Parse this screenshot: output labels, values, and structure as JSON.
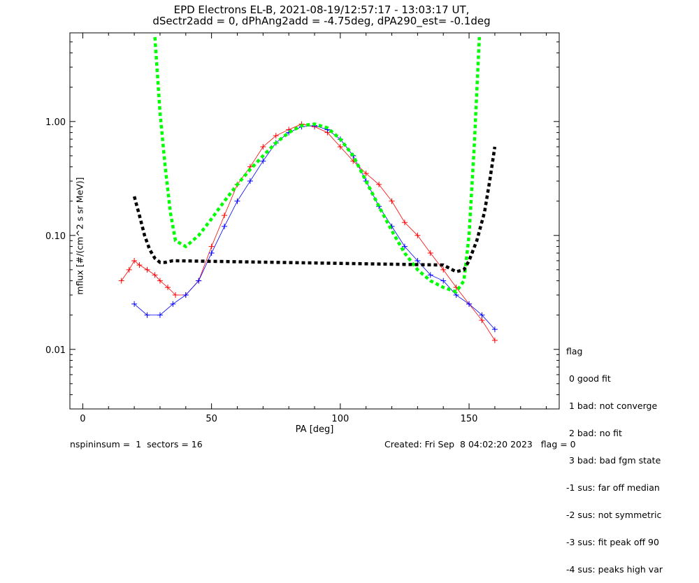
{
  "title_line1": "EPD Electrons EL-B, 2021-08-19/12:57:17 - 13:03:17 UT,",
  "title_line2": "dSectr2add = 0, dPhAng2add = -4.75deg, dPA290_est=  -0.1deg",
  "legend": {
    "heading": "flag",
    "items": [
      " 0 good fit",
      " 1 bad: not converge",
      " 2 bad: no fit",
      " 3 bad: bad fgm state",
      "-1 sus: far off median",
      "-2 sus: not symmetric",
      "-3 sus: fit peak off 90",
      "-4 sus: peaks high var"
    ]
  },
  "footer_left": "nspininsum =  1  sectors = 16",
  "footer_right": "Created: Fri Sep  8 04:02:20 2023   flag = 0",
  "colors": {
    "series_a": "#ff0000",
    "series_b": "#0000ff",
    "fit_green": "#00ff00",
    "fit_black": "#000000"
  },
  "chart_data": {
    "type": "line",
    "xlabel": "PA [deg]",
    "ylabel": "mflux [#/(cm^2 s sr MeV)]",
    "xlim": [
      -5,
      185
    ],
    "ylim": [
      0.003,
      6.0
    ],
    "yscale": "log",
    "xticks": [
      0,
      50,
      100,
      150
    ],
    "yticks": [
      {
        "value": 0.01,
        "label": "0.01"
      },
      {
        "value": 0.1,
        "label": "0.10"
      },
      {
        "value": 1.0,
        "label": "1.00"
      }
    ],
    "series": [
      {
        "color": "red",
        "x": [
          15,
          18,
          20,
          22,
          25,
          28,
          30,
          33,
          36,
          40,
          45,
          50,
          55,
          60,
          65,
          70,
          75,
          80,
          85,
          90,
          95,
          100,
          105,
          110,
          115,
          120,
          125,
          130,
          135,
          140,
          145,
          150,
          155,
          160
        ],
        "y": [
          0.04,
          0.05,
          0.06,
          0.055,
          0.05,
          0.045,
          0.04,
          0.035,
          0.03,
          0.03,
          0.04,
          0.08,
          0.15,
          0.28,
          0.4,
          0.6,
          0.75,
          0.85,
          0.95,
          0.9,
          0.8,
          0.6,
          0.45,
          0.35,
          0.28,
          0.2,
          0.13,
          0.1,
          0.07,
          0.05,
          0.035,
          0.025,
          0.018,
          0.012
        ]
      },
      {
        "color": "blue",
        "x": [
          20,
          25,
          30,
          35,
          40,
          45,
          50,
          55,
          60,
          65,
          70,
          75,
          80,
          85,
          90,
          95,
          100,
          105,
          110,
          115,
          120,
          125,
          130,
          135,
          140,
          145,
          150,
          155,
          160
        ],
        "y": [
          0.025,
          0.02,
          0.02,
          0.025,
          0.03,
          0.04,
          0.07,
          0.12,
          0.2,
          0.3,
          0.45,
          0.65,
          0.8,
          0.9,
          0.92,
          0.85,
          0.7,
          0.5,
          0.3,
          0.18,
          0.12,
          0.08,
          0.06,
          0.045,
          0.04,
          0.03,
          0.025,
          0.02,
          0.015
        ]
      },
      {
        "color": "green-dashed",
        "x": [
          28,
          30,
          32,
          34,
          36,
          40,
          45,
          50,
          55,
          60,
          65,
          70,
          75,
          80,
          85,
          90,
          95,
          100,
          105,
          110,
          115,
          120,
          125,
          130,
          135,
          140,
          145,
          148,
          150,
          152,
          154
        ],
        "y": [
          5.5,
          1.2,
          0.4,
          0.16,
          0.09,
          0.08,
          0.1,
          0.14,
          0.2,
          0.28,
          0.38,
          0.5,
          0.65,
          0.8,
          0.92,
          0.95,
          0.88,
          0.7,
          0.5,
          0.3,
          0.18,
          0.11,
          0.07,
          0.05,
          0.04,
          0.035,
          0.032,
          0.04,
          0.1,
          0.6,
          5.5
        ]
      },
      {
        "color": "black-dashed",
        "x": [
          20,
          22,
          24,
          26,
          28,
          30,
          32,
          35,
          140,
          145,
          148,
          150,
          153,
          156,
          158,
          160
        ],
        "y": [
          0.22,
          0.15,
          0.1,
          0.075,
          0.063,
          0.058,
          0.058,
          0.06,
          0.055,
          0.048,
          0.05,
          0.06,
          0.09,
          0.16,
          0.3,
          0.6
        ]
      }
    ]
  }
}
